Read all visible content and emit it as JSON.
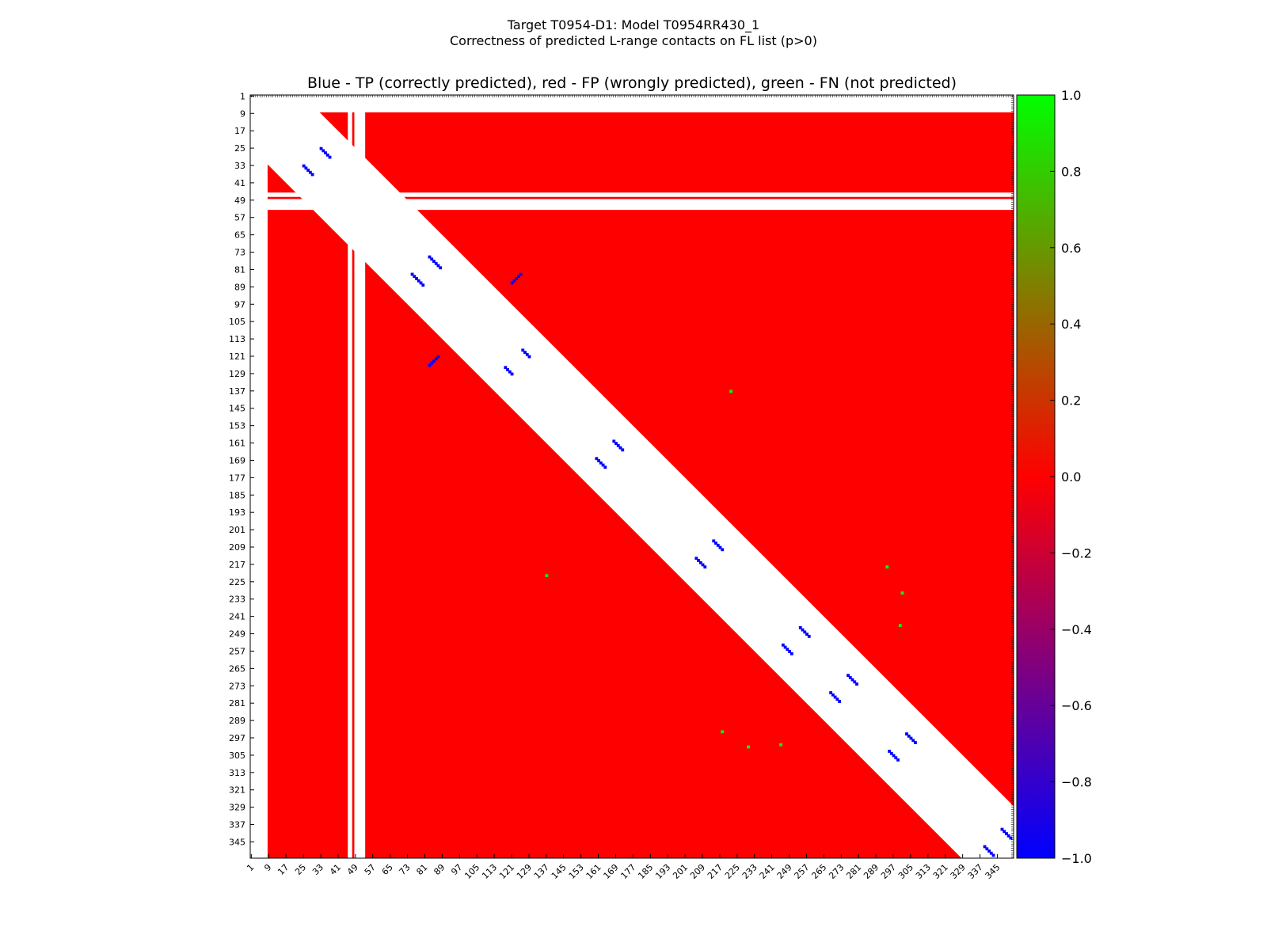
{
  "figure": {
    "title_line1": "Target T0954-D1: Model T0954RR430_1",
    "title_line2": "Correctness of predicted L-range contacts on FL list (p>0)"
  },
  "chart_data": {
    "type": "heatmap",
    "title": "Blue - TP (correctly predicted), red - FP (wrongly predicted), green - FN (not predicted)",
    "xlabel": "",
    "ylabel": "",
    "x_range": [
      1,
      352
    ],
    "y_range": [
      1,
      352
    ],
    "y_inverted": true,
    "tick_labels": [
      1,
      9,
      17,
      25,
      33,
      41,
      49,
      57,
      65,
      73,
      81,
      89,
      97,
      105,
      113,
      121,
      129,
      137,
      145,
      153,
      161,
      169,
      177,
      185,
      193,
      201,
      209,
      217,
      225,
      233,
      241,
      249,
      257,
      265,
      273,
      281,
      289,
      297,
      305,
      313,
      321,
      329,
      337,
      345
    ],
    "missing_residues": [
      [
        1,
        8
      ],
      [
        46,
        47
      ],
      [
        49,
        53
      ]
    ],
    "excluded_band_from_diagonal": 24,
    "fill_status": "FP",
    "legend": {
      "TP": {
        "value": -1.0,
        "color": "#0000ff"
      },
      "FP": {
        "value": 0.0,
        "color": "#ff0000"
      },
      "FN": {
        "value": 1.0,
        "color": "#00ff00"
      }
    },
    "contact_clusters": [
      {
        "status": "TP",
        "residue_pairs": [
          [
            25,
            33
          ],
          [
            26,
            34
          ],
          [
            27,
            35
          ],
          [
            28,
            36
          ],
          [
            29,
            37
          ],
          [
            75,
            83
          ],
          [
            76,
            84
          ],
          [
            77,
            85
          ],
          [
            78,
            86
          ],
          [
            79,
            87
          ],
          [
            80,
            88
          ],
          [
            83,
            125
          ],
          [
            84,
            124
          ],
          [
            85,
            123
          ],
          [
            86,
            122
          ],
          [
            87,
            121
          ],
          [
            118,
            126
          ],
          [
            119,
            127
          ],
          [
            120,
            128
          ],
          [
            121,
            129
          ],
          [
            160,
            168
          ],
          [
            161,
            169
          ],
          [
            162,
            170
          ],
          [
            163,
            171
          ],
          [
            164,
            172
          ],
          [
            206,
            214
          ],
          [
            207,
            215
          ],
          [
            208,
            216
          ],
          [
            209,
            217
          ],
          [
            210,
            218
          ],
          [
            246,
            254
          ],
          [
            247,
            255
          ],
          [
            248,
            256
          ],
          [
            249,
            257
          ],
          [
            250,
            258
          ],
          [
            268,
            276
          ],
          [
            269,
            277
          ],
          [
            270,
            278
          ],
          [
            271,
            279
          ],
          [
            272,
            280
          ],
          [
            295,
            303
          ],
          [
            296,
            304
          ],
          [
            297,
            305
          ],
          [
            298,
            306
          ],
          [
            299,
            307
          ],
          [
            339,
            347
          ],
          [
            340,
            348
          ],
          [
            341,
            349
          ],
          [
            342,
            350
          ],
          [
            343,
            351
          ]
        ]
      },
      {
        "status": "FN",
        "residue_pairs": [
          [
            222,
            137
          ],
          [
            230,
            301
          ],
          [
            294,
            218
          ],
          [
            300,
            245
          ]
        ]
      }
    ],
    "colorbar": {
      "range": [
        -1.0,
        1.0
      ],
      "ticks": [
        "1.0",
        "0.8",
        "0.6",
        "0.4",
        "0.2",
        "0.0",
        "−0.2",
        "−0.4",
        "−0.6",
        "−0.8",
        "−1.0"
      ],
      "colors": [
        "#0000ff",
        "#ff0000",
        "#00ff00"
      ]
    },
    "grid": false,
    "legend_position": "right colorbar"
  }
}
